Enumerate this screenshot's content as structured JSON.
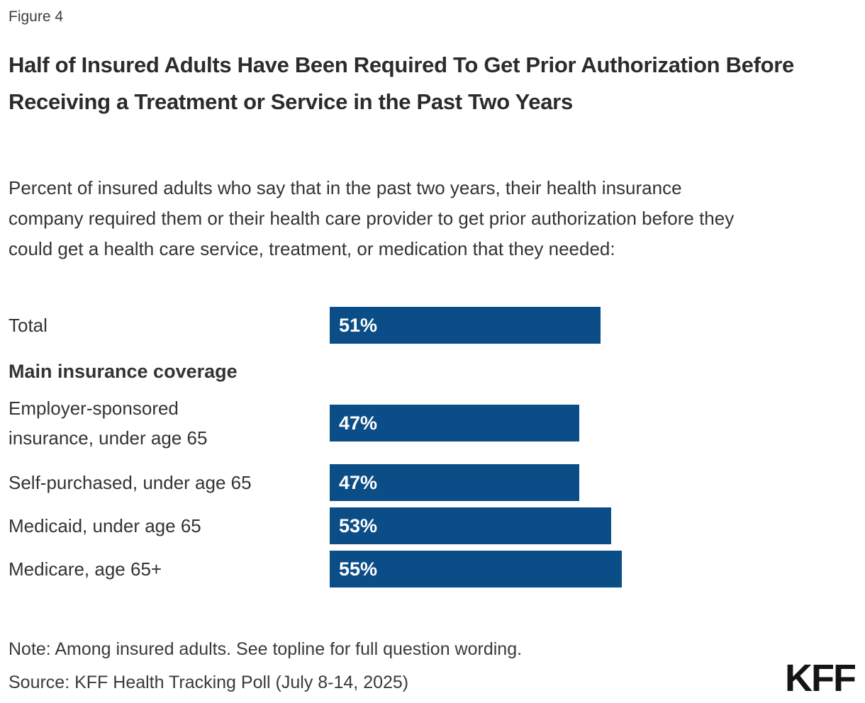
{
  "figure_label": "Figure 4",
  "title": "Half of Insured Adults Have Been Required To Get Prior Authorization Before Receiving a Treatment or Service in the Past Two Years",
  "subtitle": "Percent of insured adults who say that in the past two years, their health insurance company required them or their health care provider to get prior authorization before they could get a health care service, treatment, or medication that they needed:",
  "chart_data": {
    "type": "bar",
    "orientation": "horizontal",
    "unit": "percent",
    "title": "Half of Insured Adults Have Been Required To Get Prior Authorization Before Receiving a Treatment or Service in the Past Two Years",
    "categories": [
      "Total",
      "Employer-sponsored insurance, under age 65",
      "Self-purchased, under age 65",
      "Medicaid, under age 65",
      "Medicare, age 65+"
    ],
    "values": [
      51,
      47,
      47,
      53,
      55
    ],
    "xlim": [
      0,
      55
    ],
    "grid": false,
    "legend": "none",
    "bar_color": "#0B4D87",
    "value_label_color": "#FFFFFF",
    "section_header": "Main insurance coverage",
    "rows": [
      {
        "type": "bar",
        "label": "Total",
        "value": 51,
        "value_label": "51%"
      },
      {
        "type": "section",
        "label": "Main insurance coverage"
      },
      {
        "type": "bar",
        "label": "Employer-sponsored\ninsurance, under age 65",
        "value": 47,
        "value_label": "47%"
      },
      {
        "type": "bar",
        "label": "Self-purchased, under age 65",
        "value": 47,
        "value_label": "47%"
      },
      {
        "type": "bar",
        "label": "Medicaid, under age 65",
        "value": 53,
        "value_label": "53%"
      },
      {
        "type": "bar",
        "label": "Medicare, age 65+",
        "value": 55,
        "value_label": "55%"
      }
    ]
  },
  "footer": {
    "note": "Note: Among insured adults. See topline for full question wording.",
    "source": "Source: KFF Health Tracking Poll (July 8-14, 2025)",
    "logo": "KFF"
  },
  "colors": {
    "bar_blue": "#0B4D87",
    "text_dark": "#333333",
    "title_dark": "#2b2b2b",
    "background": "#FFFFFF"
  }
}
